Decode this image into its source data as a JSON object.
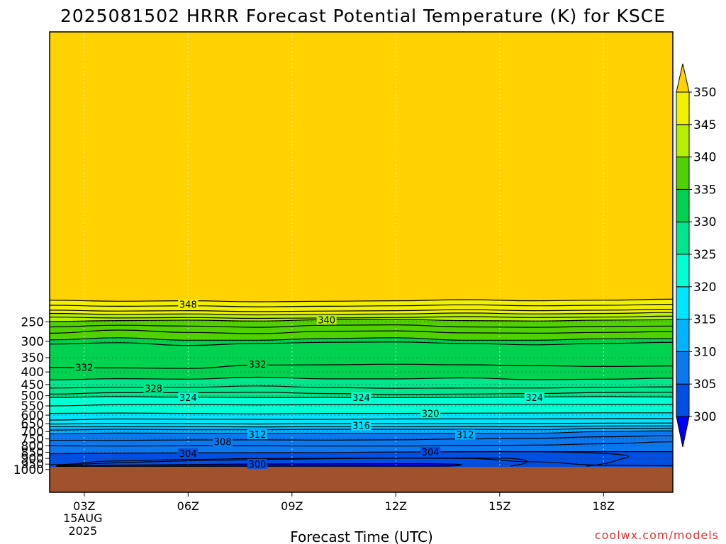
{
  "chart_data": {
    "type": "heatmap",
    "title": "2025081502 HRRR Forecast Potential Temperature (K) for KSCE",
    "xlabel": "Forecast Time (UTC)",
    "ylabel": "",
    "watermark": "coolwx.com/models",
    "x_ticks": [
      {
        "hour": 3,
        "label": "03Z",
        "sub": [
          "15AUG",
          "2025"
        ]
      },
      {
        "hour": 6,
        "label": "06Z"
      },
      {
        "hour": 9,
        "label": "09Z"
      },
      {
        "hour": 12,
        "label": "12Z"
      },
      {
        "hour": 15,
        "label": "15Z"
      },
      {
        "hour": 18,
        "label": "18Z"
      }
    ],
    "xlim": [
      2,
      20
    ],
    "y_levels": [
      250,
      300,
      350,
      400,
      450,
      500,
      550,
      600,
      650,
      700,
      750,
      800,
      850,
      900,
      950,
      1000
    ],
    "ylim": [
      200,
      1000
    ],
    "y_scale": "log-pressure",
    "grid": "dotted",
    "colorbar": {
      "boundaries": [
        300,
        305,
        310,
        315,
        320,
        325,
        330,
        335,
        340,
        345,
        350
      ],
      "colors": [
        "#0000ff",
        "#0050e6",
        "#0a78ee",
        "#00b4ff",
        "#00e6ff",
        "#00ffd2",
        "#00e68c",
        "#00d250",
        "#50d200",
        "#b4f000",
        "#f0f000",
        "#ffd200"
      ],
      "extend": "both"
    },
    "contour_interval": 2,
    "contour_labels": [
      {
        "value": 348,
        "hour": 6.0,
        "pressure": 212
      },
      {
        "value": 340,
        "hour": 10.0,
        "pressure": 245
      },
      {
        "value": 332,
        "hour": 3.0,
        "pressure": 383
      },
      {
        "value": 332,
        "hour": 8.0,
        "pressure": 372
      },
      {
        "value": 328,
        "hour": 5.0,
        "pressure": 465
      },
      {
        "value": 324,
        "hour": 6.0,
        "pressure": 508
      },
      {
        "value": 324,
        "hour": 11.0,
        "pressure": 508
      },
      {
        "value": 324,
        "hour": 16.0,
        "pressure": 508
      },
      {
        "value": 320,
        "hour": 13.0,
        "pressure": 590
      },
      {
        "value": 316,
        "hour": 11.0,
        "pressure": 660
      },
      {
        "value": 312,
        "hour": 8.0,
        "pressure": 718
      },
      {
        "value": 312,
        "hour": 14.0,
        "pressure": 720
      },
      {
        "value": 308,
        "hour": 7.0,
        "pressure": 770
      },
      {
        "value": 304,
        "hour": 6.0,
        "pressure": 858
      },
      {
        "value": 304,
        "hour": 13.0,
        "pressure": 848
      },
      {
        "value": 300,
        "hour": 8.0,
        "pressure": 948
      }
    ],
    "isentropes": [
      {
        "value": 350,
        "pressure": [
          204,
          206,
          205,
          207,
          206,
          205,
          203,
          205,
          204,
          202
        ]
      },
      {
        "value": 348,
        "pressure": [
          214,
          216,
          215,
          217,
          216,
          215,
          213,
          215,
          214,
          212
        ]
      },
      {
        "value": 346,
        "pressure": [
          224,
          226,
          225,
          227,
          226,
          225,
          223,
          225,
          224,
          222
        ]
      },
      {
        "value": 344,
        "pressure": [
          231,
          233,
          232,
          234,
          233,
          232,
          230,
          232,
          231,
          229
        ]
      },
      {
        "value": 342,
        "pressure": [
          239,
          241,
          240,
          242,
          241,
          240,
          238,
          240,
          239,
          237
        ]
      },
      {
        "value": 340,
        "pressure": [
          249,
          247,
          246,
          248,
          245,
          244,
          247,
          248,
          246,
          245
        ]
      },
      {
        "value": 338,
        "pressure": [
          262,
          258,
          260,
          263,
          258,
          257,
          262,
          263,
          261,
          260
        ]
      },
      {
        "value": 336,
        "pressure": [
          278,
          270,
          276,
          279,
          273,
          272,
          277,
          278,
          276,
          274
        ]
      },
      {
        "value": 334,
        "pressure": [
          296,
          290,
          297,
          297,
          292,
          290,
          297,
          297,
          293,
          292
        ]
      },
      {
        "value": 334,
        "pressure": [
          308,
          304,
          312,
          306,
          303,
          302,
          306,
          310,
          306,
          303
        ]
      },
      {
        "value": 332,
        "pressure": [
          383,
          385,
          387,
          375,
          374,
          372,
          374,
          377,
          380,
          378
        ]
      },
      {
        "value": 330,
        "pressure": [
          431,
          426,
          428,
          420,
          427,
          427,
          423,
          430,
          428,
          424
        ]
      },
      {
        "value": 328,
        "pressure": [
          465,
          462,
          462,
          456,
          463,
          466,
          465,
          465,
          462,
          460
        ]
      },
      {
        "value": 326,
        "pressure": [
          492,
          486,
          486,
          484,
          490,
          494,
          492,
          490,
          485,
          484
        ]
      },
      {
        "value": 324,
        "pressure": [
          508,
          504,
          507,
          508,
          508,
          509,
          508,
          506,
          504,
          506
        ]
      },
      {
        "value": 322,
        "pressure": [
          550,
          544,
          543,
          545,
          544,
          544,
          543,
          542,
          543,
          543
        ]
      },
      {
        "value": 320,
        "pressure": [
          590,
          588,
          590,
          593,
          590,
          590,
          589,
          588,
          587,
          587
        ]
      },
      {
        "value": 318,
        "pressure": [
          628,
          622,
          623,
          624,
          624,
          622,
          621,
          621,
          620,
          620
        ]
      },
      {
        "value": 316,
        "pressure": [
          652,
          648,
          650,
          652,
          650,
          650,
          650,
          649,
          647,
          646
        ]
      },
      {
        "value": 314,
        "pressure": [
          668,
          668,
          668,
          670,
          668,
          668,
          667,
          668,
          664,
          663
        ]
      },
      {
        "value": 312,
        "pressure": [
          690,
          686,
          688,
          688,
          686,
          686,
          686,
          688,
          680,
          678
        ]
      },
      {
        "value": 310,
        "pressure": [
          715,
          710,
          711,
          712,
          712,
          713,
          712,
          711,
          700,
          695
        ]
      },
      {
        "value": 308,
        "pressure": [
          760,
          760,
          757,
          756,
          758,
          756,
          750,
          745,
          735,
          728
        ]
      },
      {
        "value": 306,
        "pressure": [
          800,
          802,
          800,
          800,
          802,
          802,
          798,
          795,
          785,
          770
        ]
      },
      {
        "value": 304,
        "pressure": [
          862,
          858,
          855,
          853,
          852,
          848,
          845,
          845,
          845,
          845
        ]
      },
      {
        "value": 302,
        "pressure": [
          955,
          922,
          910,
          902,
          900,
          898,
          900,
          930,
          960,
          965
        ]
      }
    ],
    "surface_pressure": 975
  }
}
